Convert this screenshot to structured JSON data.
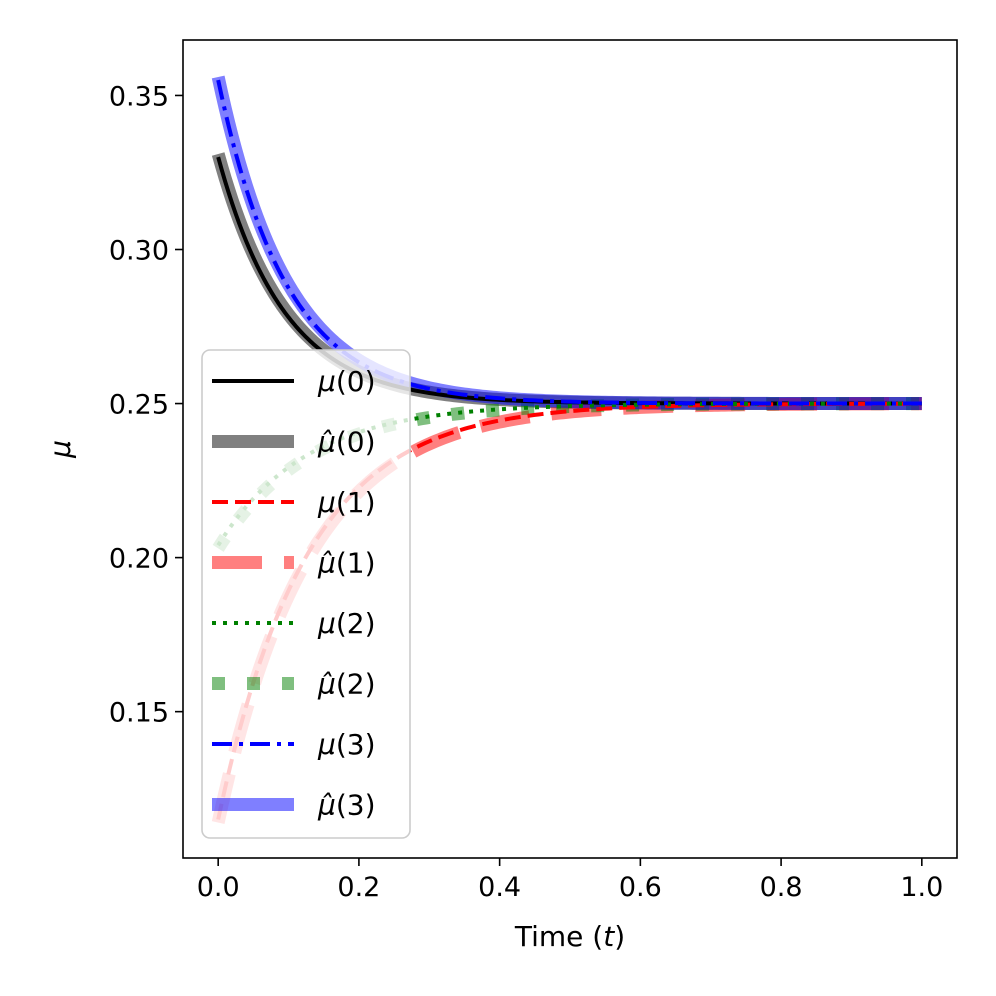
{
  "chart_data": {
    "type": "line",
    "xlabel_prefix": "Time (",
    "xlabel_var": "t",
    "xlabel_suffix": ")",
    "ylabel": "μ",
    "xlim": [
      -0.05,
      1.05
    ],
    "ylim": [
      0.1025,
      0.368
    ],
    "xticks": [
      0.0,
      0.2,
      0.4,
      0.6,
      0.8,
      1.0
    ],
    "xtick_labels": [
      "0.0",
      "0.2",
      "0.4",
      "0.6",
      "0.8",
      "1.0"
    ],
    "yticks": [
      0.15,
      0.2,
      0.25,
      0.3,
      0.35
    ],
    "ytick_labels": [
      "0.15",
      "0.20",
      "0.25",
      "0.30",
      "0.35"
    ],
    "grid": false,
    "legend_position": "lower-left",
    "series": [
      {
        "name": "μ(0)",
        "base": "μ",
        "hat": false,
        "index": "0",
        "y0": 0.33,
        "rate": 10.5,
        "color": "#000000",
        "width": 4,
        "dash": "",
        "opacity": 1,
        "cap": "butt"
      },
      {
        "name": "μ̂(0)",
        "base": "μ",
        "hat": true,
        "index": "0",
        "y0": 0.331,
        "rate": 10.3,
        "color": "#808080",
        "width": 13,
        "dash": "",
        "opacity": 1,
        "cap": "butt"
      },
      {
        "name": "μ(1)",
        "base": "μ",
        "hat": false,
        "index": "1",
        "y0": 0.115,
        "rate": 8.0,
        "color": "#ff0000",
        "width": 4,
        "dash": "16,7",
        "opacity": 1,
        "cap": "butt"
      },
      {
        "name": "μ̂(1)",
        "base": "μ",
        "hat": true,
        "index": "1",
        "y0": 0.114,
        "rate": 7.8,
        "color": "#ff0000",
        "width": 13,
        "dash": "50,22",
        "opacity": 0.5,
        "cap": "butt"
      },
      {
        "name": "μ(2)",
        "base": "μ",
        "hat": false,
        "index": "2",
        "y0": 0.204,
        "rate": 8.0,
        "color": "#008000",
        "width": 4,
        "dash": "4,7",
        "opacity": 1,
        "cap": "butt"
      },
      {
        "name": "μ̂(2)",
        "base": "μ",
        "hat": true,
        "index": "2",
        "y0": 0.203,
        "rate": 7.8,
        "color": "#008000",
        "width": 13,
        "dash": "13,22",
        "opacity": 0.5,
        "cap": "butt"
      },
      {
        "name": "μ(3)",
        "base": "μ",
        "hat": false,
        "index": "3",
        "y0": 0.355,
        "rate": 10.3,
        "color": "#0000ff",
        "width": 4,
        "dash": "20,7,4,7",
        "opacity": 1,
        "cap": "butt"
      },
      {
        "name": "μ̂(3)",
        "base": "μ",
        "hat": true,
        "index": "3",
        "y0": 0.356,
        "rate": 10.1,
        "color": "#0000ff",
        "width": 13,
        "dash": "",
        "opacity": 0.5,
        "cap": "butt"
      }
    ],
    "asymptote": 0.25
  }
}
